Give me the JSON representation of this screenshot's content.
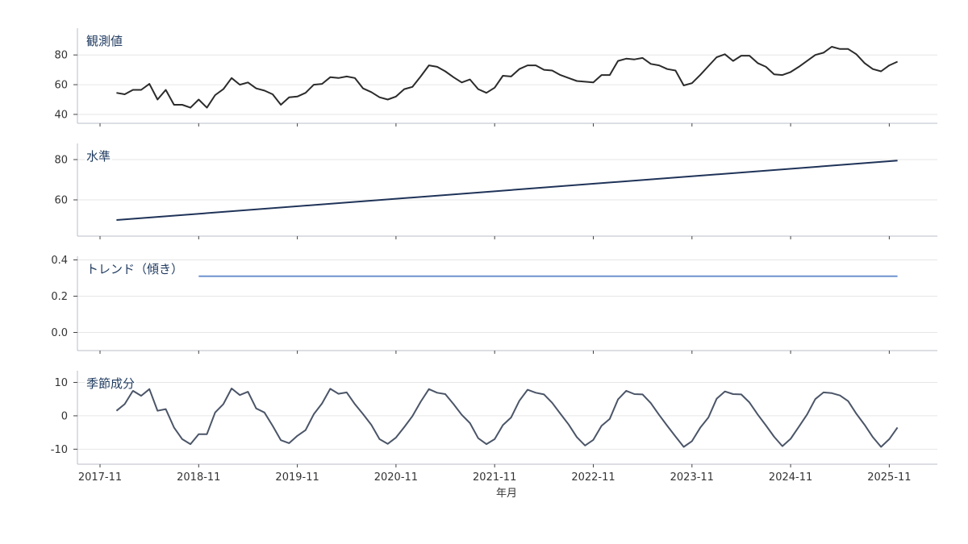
{
  "chart_data": {
    "type": "line",
    "x_axis_label": "年月",
    "x_tick_labels": [
      "2017-11",
      "2018-11",
      "2019-11",
      "2020-11",
      "2021-11",
      "2022-11",
      "2023-11",
      "2024-11",
      "2025-11"
    ],
    "x_start": "2018-01",
    "x_end": "2025-12",
    "panels": [
      {
        "title": "観測値",
        "color": "#2b2b2b",
        "ylim": [
          34,
          98
        ],
        "yticks": [
          40,
          60,
          80
        ],
        "tick_format": "int",
        "series": [
          {
            "start": "2018-01",
            "values": [
              54.5,
              53.5,
              56.5,
              56.5,
              60.5,
              50,
              56.5,
              46.5,
              46.5,
              44.5,
              50,
              44.5,
              53,
              57,
              64.5,
              60,
              61.5,
              57.5,
              56,
              53.5,
              46.5,
              51.5,
              52,
              54.5,
              60,
              60.5,
              65,
              64.5,
              65.5,
              64.5,
              57.5,
              55,
              51.5,
              50,
              52,
              57,
              58.5,
              65.5,
              73,
              72,
              69,
              65,
              61.5,
              63.5,
              57,
              54.5,
              58,
              66,
              65.5,
              70.5,
              73,
              73,
              70,
              69.5,
              66.5,
              64.5,
              62.5,
              62,
              61.5,
              66.5,
              66.5,
              76,
              77.5,
              77,
              78,
              74,
              73,
              70.5,
              69.5,
              59.5,
              61,
              66.5,
              72.5,
              78.5,
              80.5,
              76,
              79.5,
              79.5,
              74.5,
              72,
              67,
              66.5,
              68.5,
              72,
              76,
              80,
              81.5,
              85.5,
              84,
              84,
              80.5,
              74.5,
              70.5,
              69,
              73,
              75.5
            ]
          }
        ]
      },
      {
        "title": "水準",
        "color": "#1f3358",
        "ylim": [
          42,
          88
        ],
        "yticks": [
          60,
          80
        ],
        "tick_format": "int",
        "series": [
          {
            "start": "2018-01",
            "end": "2025-12",
            "from": 50,
            "to": 79.5
          }
        ]
      },
      {
        "title": "トレンド（傾き）",
        "color": "#6f93cf",
        "ylim": [
          -0.1,
          0.42
        ],
        "yticks": [
          0.0,
          0.2,
          0.4
        ],
        "tick_format": "1f",
        "series": [
          {
            "start": "2018-11",
            "end": "2025-12",
            "from": 0.31,
            "to": 0.31
          }
        ]
      },
      {
        "title": "季節成分",
        "color": "#4b5568",
        "ylim": [
          -14.5,
          13.5
        ],
        "yticks": [
          -10,
          0,
          10
        ],
        "tick_format": "int",
        "series": [
          {
            "start": "2018-01",
            "values": [
              1.5,
              3.5,
              7.5,
              6,
              8,
              1.5,
              2,
              -3.5,
              -7,
              -8.5,
              -5.5,
              -5.5,
              1,
              3.5,
              8.2,
              6.2,
              7.2,
              2.2,
              1,
              -3,
              -7.3,
              -8.2,
              -6,
              -4.3,
              0.5,
              3.7,
              8.1,
              6.6,
              7,
              3.5,
              0.5,
              -2.7,
              -7,
              -8.4,
              -6.5,
              -3.4,
              -0.1,
              4.2,
              8,
              6.9,
              6.5,
              3.5,
              0.3,
              -2.2,
              -6.7,
              -8.5,
              -7,
              -2.8,
              -0.5,
              4.5,
              7.8,
              6.9,
              6.4,
              3.9,
              0.6,
              -2.6,
              -6.4,
              -8.9,
              -7.2,
              -3,
              -0.9,
              4.9,
              7.5,
              6.5,
              6.4,
              3.8,
              0.3,
              -3,
              -6.2,
              -9.3,
              -7.6,
              -3.6,
              -0.5,
              5.1,
              7.3,
              6.5,
              6.4,
              4,
              0.4,
              -2.9,
              -6.3,
              -9.1,
              -6.9,
              -3.3,
              0.4,
              5,
              7,
              6.8,
              6.1,
              4.4,
              0.6,
              -2.7,
              -6.4,
              -9.3,
              -7,
              -3.5
            ]
          }
        ]
      }
    ]
  }
}
